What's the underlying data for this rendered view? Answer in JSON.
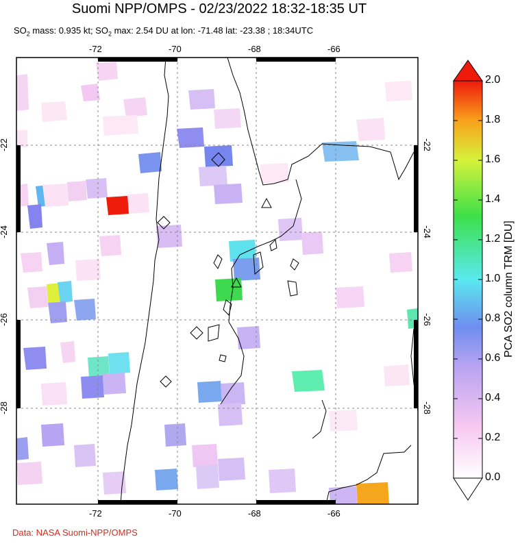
{
  "title": "Suomi NPP/OMPS - 02/23/2022 18:32-18:35 UT",
  "subtitle": {
    "part1": "SO",
    "sub1": "2",
    "part2": " mass: 0.935 kt; SO",
    "sub2": "2",
    "part3": " max: 2.54 DU at lon: -71.48 lat: -23.38 ; 18:34UTC"
  },
  "credit": "Data: NASA Suomi-NPP/OMPS",
  "map": {
    "lon_ticks": [
      "-72",
      "-70",
      "-68",
      "-66"
    ],
    "lat_ticks": [
      "-22",
      "-24",
      "-26",
      "-28"
    ],
    "lon_range": [
      -74.0,
      -64.0
    ],
    "lat_range": [
      -20.0,
      -30.0
    ],
    "grid_line_color": "#888888",
    "coastline_color": "#000000",
    "volcano_markers": {
      "triangle": "volcano-triangle-icon",
      "diamond": "volcano-diamond-icon"
    }
  },
  "colorbar": {
    "title": "PCA SO2 column TRM [DU]",
    "labels": [
      "2.0",
      "1.8",
      "1.6",
      "1.4",
      "1.2",
      "1.0",
      "0.8",
      "0.6",
      "0.4",
      "0.2",
      "0.0"
    ],
    "min": 0.0,
    "max": 2.0,
    "colors": [
      "#ffffff",
      "#f7c8f2",
      "#b9a4f2",
      "#6f8ef0",
      "#59e9ef",
      "#3de04a",
      "#d6f23a",
      "#f8a21b",
      "#ee1a0a"
    ]
  }
}
